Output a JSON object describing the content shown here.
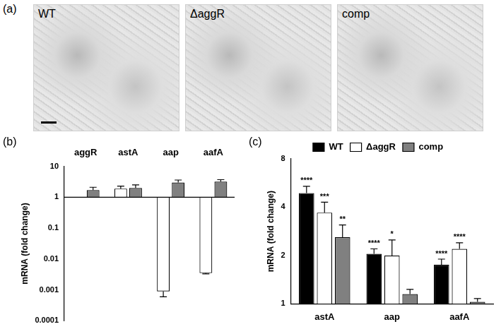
{
  "images": {
    "label": "(a)",
    "panels": [
      "WT",
      "ΔaggR",
      "comp"
    ]
  },
  "chart_data": [
    {
      "type": "bar",
      "title": "(b)",
      "y_label": "mRNA (fold change)",
      "categories": [
        "aggR",
        "astA",
        "aap",
        "aafA"
      ],
      "series": [
        {
          "name": "ΔaggR",
          "color": "#ffffff",
          "values": [
            null,
            1.9,
            0.0009,
            0.0035
          ],
          "errors": [
            null,
            0.4,
            0.0003,
            0.0002
          ]
        },
        {
          "name": "comp",
          "color": "#808080",
          "values": [
            1.7,
            2.0,
            3.0,
            3.2
          ],
          "errors": [
            0.4,
            0.5,
            0.6,
            0.5
          ]
        }
      ],
      "log": "y",
      "ylim": [
        0.0001,
        10
      ],
      "yticks": [
        0.0001,
        0.001,
        0.01,
        0.1,
        1,
        10
      ],
      "grid": false
    },
    {
      "type": "bar",
      "title": "(c)",
      "y_label": "mRNA (fold change)",
      "categories": [
        "astA",
        "aap",
        "aafA"
      ],
      "series": [
        {
          "name": "WT",
          "color": "#000000",
          "values": [
            4.9,
            2.05,
            1.75
          ],
          "errors": [
            0.5,
            0.15,
            0.15
          ],
          "significance": [
            "****",
            "****",
            "****"
          ]
        },
        {
          "name": "ΔaggR",
          "color": "#ffffff",
          "values": [
            3.7,
            2.0,
            2.2
          ],
          "errors": [
            0.6,
            0.5,
            0.2
          ],
          "significance": [
            "***",
            "*",
            "****"
          ]
        },
        {
          "name": "comp",
          "color": "#808080",
          "values": [
            2.6,
            1.15,
            1.03
          ],
          "errors": [
            0.5,
            0.08,
            0.05
          ],
          "significance": [
            "**",
            null,
            null
          ]
        }
      ],
      "log": "y",
      "ylim": [
        1,
        8
      ],
      "yticks": [
        1,
        2,
        4,
        8
      ],
      "grid": false,
      "legend": "top"
    }
  ]
}
